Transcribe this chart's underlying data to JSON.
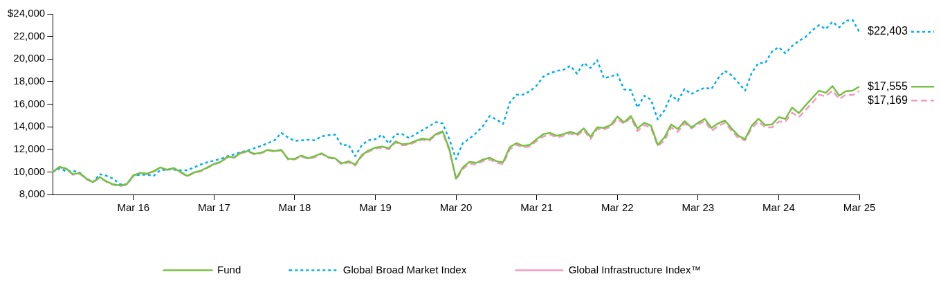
{
  "chart_data": {
    "type": "line",
    "x": [
      "2015-03",
      "2015-04",
      "2015-05",
      "2015-06",
      "2015-07",
      "2015-08",
      "2015-09",
      "2015-10",
      "2015-11",
      "2015-12",
      "2016-01",
      "2016-02",
      "2016-03",
      "2016-04",
      "2016-05",
      "2016-06",
      "2016-07",
      "2016-08",
      "2016-09",
      "2016-10",
      "2016-11",
      "2016-12",
      "2017-01",
      "2017-02",
      "2017-03",
      "2017-04",
      "2017-05",
      "2017-06",
      "2017-07",
      "2017-08",
      "2017-09",
      "2017-10",
      "2017-11",
      "2017-12",
      "2018-01",
      "2018-02",
      "2018-03",
      "2018-04",
      "2018-05",
      "2018-06",
      "2018-07",
      "2018-08",
      "2018-09",
      "2018-10",
      "2018-11",
      "2018-12",
      "2019-01",
      "2019-02",
      "2019-03",
      "2019-04",
      "2019-05",
      "2019-06",
      "2019-07",
      "2019-08",
      "2019-09",
      "2019-10",
      "2019-11",
      "2019-12",
      "2020-01",
      "2020-02",
      "2020-03",
      "2020-04",
      "2020-05",
      "2020-06",
      "2020-07",
      "2020-08",
      "2020-09",
      "2020-10",
      "2020-11",
      "2020-12",
      "2021-01",
      "2021-02",
      "2021-03",
      "2021-04",
      "2021-05",
      "2021-06",
      "2021-07",
      "2021-08",
      "2021-09",
      "2021-10",
      "2021-11",
      "2021-12",
      "2022-01",
      "2022-02",
      "2022-03",
      "2022-04",
      "2022-05",
      "2022-06",
      "2022-07",
      "2022-08",
      "2022-09",
      "2022-10",
      "2022-11",
      "2022-12",
      "2023-01",
      "2023-02",
      "2023-03",
      "2023-04",
      "2023-05",
      "2023-06",
      "2023-07",
      "2023-08",
      "2023-09",
      "2023-10",
      "2023-11",
      "2023-12",
      "2024-01",
      "2024-02",
      "2024-03",
      "2024-04",
      "2024-05",
      "2024-06",
      "2024-07",
      "2024-08",
      "2024-09",
      "2024-10",
      "2024-11",
      "2024-12",
      "2025-01",
      "2025-02",
      "2025-03"
    ],
    "series": [
      {
        "name": "Fund",
        "color": "#76c043",
        "line_style": "solid",
        "values": [
          10000,
          10450,
          10300,
          9800,
          9900,
          9400,
          9100,
          9550,
          9150,
          8900,
          8800,
          8900,
          9700,
          9900,
          9850,
          10050,
          10400,
          10200,
          10350,
          10000,
          9650,
          9950,
          10100,
          10400,
          10700,
          10900,
          11350,
          11300,
          11700,
          11850,
          11600,
          11700,
          11950,
          11850,
          11950,
          11150,
          11150,
          11450,
          11200,
          11400,
          11650,
          11300,
          11200,
          10750,
          10950,
          10650,
          11500,
          11900,
          12150,
          12250,
          12100,
          12700,
          12450,
          12500,
          12750,
          12950,
          12850,
          13350,
          13600,
          12050,
          9400,
          10400,
          10900,
          10800,
          11100,
          11250,
          10950,
          10850,
          12200,
          12550,
          12300,
          12400,
          12900,
          13350,
          13450,
          13200,
          13350,
          13550,
          13350,
          13850,
          13100,
          13950,
          13900,
          14150,
          14900,
          14400,
          14950,
          13850,
          14350,
          14100,
          12400,
          13050,
          14200,
          13800,
          14500,
          13950,
          14350,
          14700,
          13900,
          14300,
          14550,
          13850,
          13200,
          12900,
          14100,
          14700,
          14150,
          14200,
          14850,
          14700,
          15700,
          15200,
          15900,
          16550,
          17200,
          17000,
          17600,
          16750,
          17150,
          17200,
          17555
        ]
      },
      {
        "name": "Global Broad Market Index",
        "color": "#00aeef",
        "line_style": "dotted",
        "values": [
          10000,
          10300,
          10050,
          10100,
          9950,
          9400,
          9100,
          9800,
          9650,
          9400,
          8900,
          8900,
          9650,
          9750,
          9750,
          9650,
          10150,
          10200,
          10200,
          10150,
          10150,
          10400,
          10650,
          10850,
          11000,
          11150,
          11400,
          11550,
          11750,
          11900,
          12100,
          12300,
          12550,
          12800,
          13450,
          13050,
          12750,
          12800,
          12850,
          12800,
          13150,
          13250,
          13300,
          12350,
          12400,
          11400,
          12400,
          12800,
          12900,
          13300,
          12500,
          13350,
          13350,
          13000,
          13350,
          13700,
          14050,
          14400,
          14300,
          12900,
          11150,
          12550,
          12950,
          13450,
          14050,
          14950,
          14650,
          14250,
          16150,
          16850,
          16850,
          17150,
          17650,
          18450,
          18750,
          18950,
          19050,
          19400,
          18700,
          19650,
          19200,
          19900,
          18300,
          18450,
          18650,
          17300,
          17250,
          15700,
          16750,
          16400,
          14650,
          15450,
          16800,
          16300,
          17350,
          16900,
          17200,
          17450,
          17350,
          18300,
          18950,
          18550,
          17900,
          17200,
          18800,
          19650,
          19650,
          20650,
          21050,
          20500,
          21150,
          21600,
          21950,
          22550,
          23000,
          22650,
          23300,
          22800,
          23400,
          23450,
          22403
        ]
      },
      {
        "name": "Global Infrastructure Index™",
        "color": "#f49ac1",
        "line_style": "dashed",
        "values": [
          10000,
          10400,
          10250,
          9750,
          9850,
          9350,
          9050,
          9500,
          9100,
          8850,
          8750,
          8850,
          9650,
          9850,
          9800,
          10000,
          10350,
          10150,
          10300,
          9950,
          9600,
          9900,
          10050,
          10350,
          10650,
          10850,
          11300,
          11250,
          11650,
          11800,
          11550,
          11650,
          11900,
          11800,
          11900,
          11100,
          11100,
          11350,
          11150,
          11300,
          11600,
          11250,
          11150,
          10650,
          10850,
          10550,
          11400,
          11800,
          12050,
          12150,
          12000,
          12600,
          12350,
          12400,
          12650,
          12850,
          12750,
          13250,
          13500,
          11900,
          9300,
          10250,
          10750,
          10650,
          10950,
          11100,
          10800,
          10700,
          12000,
          12400,
          12150,
          12250,
          12750,
          13150,
          13300,
          13050,
          13200,
          13400,
          13200,
          13700,
          12900,
          13800,
          13750,
          14000,
          14700,
          14250,
          14800,
          13600,
          14150,
          13900,
          12300,
          12750,
          13950,
          13550,
          14300,
          13850,
          14200,
          14500,
          13650,
          14050,
          14350,
          13650,
          13000,
          12800,
          13900,
          14450,
          13950,
          13950,
          14450,
          14450,
          15250,
          14850,
          15500,
          16100,
          16850,
          16700,
          17200,
          16450,
          16850,
          16800,
          17169
        ]
      }
    ],
    "xlim": [
      "2015-03",
      "2025-03"
    ],
    "xticks": [
      {
        "value": "2016-03",
        "label": "Mar 16"
      },
      {
        "value": "2017-03",
        "label": "Mar 17"
      },
      {
        "value": "2018-03",
        "label": "Mar 18"
      },
      {
        "value": "2019-03",
        "label": "Mar 19"
      },
      {
        "value": "2020-03",
        "label": "Mar 20"
      },
      {
        "value": "2021-03",
        "label": "Mar 21"
      },
      {
        "value": "2022-03",
        "label": "Mar 22"
      },
      {
        "value": "2023-03",
        "label": "Mar 23"
      },
      {
        "value": "2024-03",
        "label": "Mar 24"
      },
      {
        "value": "2025-03",
        "label": "Mar 25"
      }
    ],
    "ylim": [
      8000,
      24000
    ],
    "yticks": [
      {
        "value": 8000,
        "label": "8,000"
      },
      {
        "value": 10000,
        "label": "10,000"
      },
      {
        "value": 12000,
        "label": "12,000"
      },
      {
        "value": 14000,
        "label": "14,000"
      },
      {
        "value": 16000,
        "label": "16,000"
      },
      {
        "value": 18000,
        "label": "18,000"
      },
      {
        "value": 20000,
        "label": "20,000"
      },
      {
        "value": 22000,
        "label": "22,000"
      },
      {
        "value": 24000,
        "label": "$24,000"
      }
    ],
    "annotations": [
      {
        "text": "$17,555",
        "x": "2025-03",
        "y": 17555
      },
      {
        "text": "$22,403",
        "x": "2025-03",
        "y": 22403
      },
      {
        "text": "$17,169",
        "x": "2025-03",
        "y": 17169
      }
    ],
    "grid": false,
    "legend": "bottom",
    "marker": "none"
  }
}
